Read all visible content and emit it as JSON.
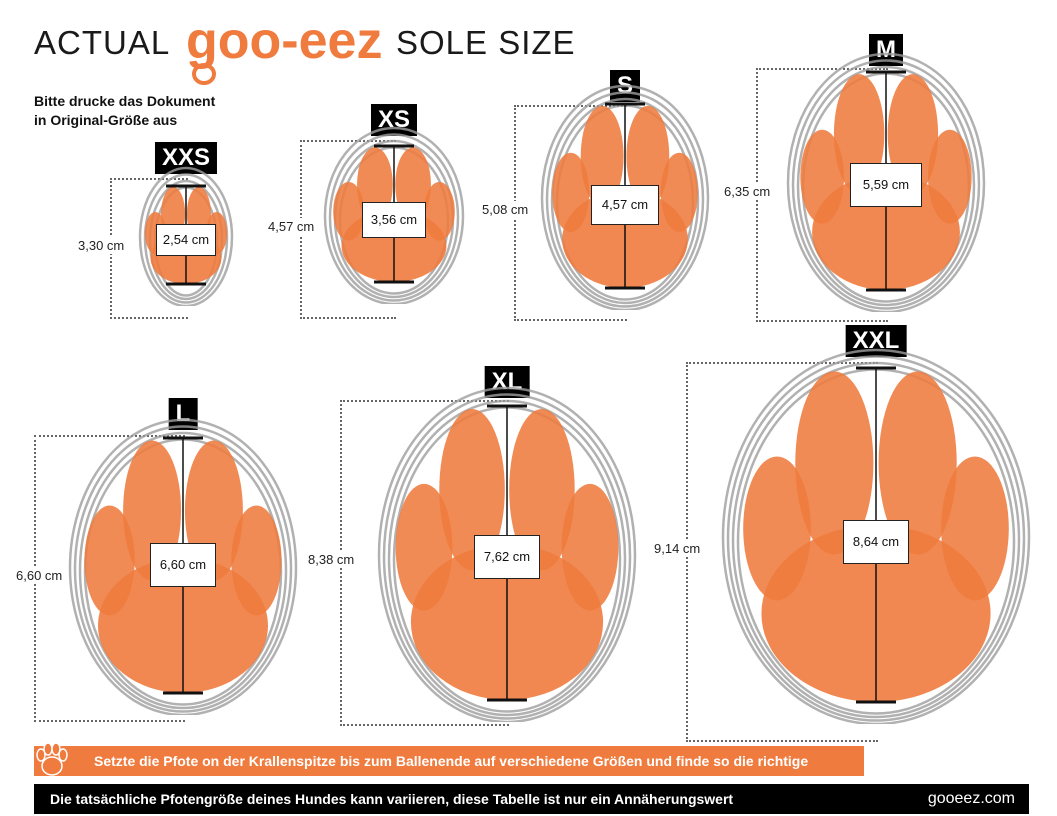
{
  "header": {
    "prefix": "ACTUAL",
    "brand": "goo-eez",
    "suffix": "SOLE SIZE"
  },
  "print_note": {
    "line1": "Bitte drucke das Dokument",
    "line2": "in Original-Größe aus"
  },
  "colors": {
    "paw": "#ef7b3e",
    "rings": "#9e9e9e",
    "brand": "#ef7b3e"
  },
  "sizes": [
    {
      "tag": "XXS",
      "height": "3,30 cm",
      "width": "2,54 cm"
    },
    {
      "tag": "XS",
      "height": "4,57 cm",
      "width": "3,56 cm"
    },
    {
      "tag": "S",
      "height": "5,08 cm",
      "width": "4,57 cm"
    },
    {
      "tag": "M",
      "height": "6,35 cm",
      "width": "5,59 cm"
    },
    {
      "tag": "L",
      "height": "6,60 cm",
      "width": "6,60 cm"
    },
    {
      "tag": "XL",
      "height": "8,38 cm",
      "width": "7,62 cm"
    },
    {
      "tag": "XXL",
      "height": "9,14 cm",
      "width": "8,64 cm"
    }
  ],
  "banners": {
    "instruction": "Setzte die Pfote on der Krallenspitze bis zum Ballenende auf verschiedene Größen und finde so die richtige",
    "disclaimer": "Die tatsächliche Pfotengröße deines Hundes kann variieren, diese Tabelle ist nur ein Annäherungswert",
    "url": "gooeez.com"
  },
  "icons": {
    "banner_icon": "paw-icon"
  }
}
